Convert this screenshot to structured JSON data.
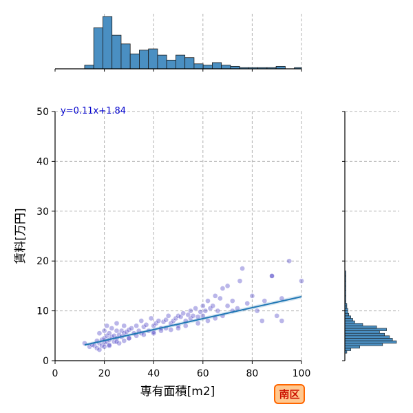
{
  "chart_data": {
    "type": "scatter",
    "title": "",
    "xlabel": "専有面積[m2]",
    "ylabel": "賃料[万円]",
    "xlim": [
      0,
      100
    ],
    "ylim": [
      0,
      50
    ],
    "xticks": [
      0,
      20,
      40,
      60,
      80,
      100
    ],
    "yticks": [
      0,
      10,
      20,
      30,
      40,
      50
    ],
    "grid": true,
    "annotation": "y=0.11x+1.84",
    "badge": "南区",
    "regression": {
      "slope": 0.11,
      "intercept": 1.84,
      "x_range": [
        12,
        100
      ]
    },
    "scatter_color": "#3a2fc0",
    "line_color": "#1f77b4",
    "hist_color": "#4a8fc2",
    "badge_fill": "#ffc890",
    "badge_stroke": "#ff6600",
    "series": [
      {
        "x": [
          12,
          14,
          15,
          16,
          17,
          17,
          18,
          18,
          19,
          19,
          20,
          20,
          20,
          21,
          21,
          21,
          22,
          22,
          22,
          23,
          23,
          24,
          24,
          25,
          25,
          25,
          26,
          26,
          27,
          27,
          28,
          28,
          29,
          30,
          30,
          31,
          32,
          33,
          34,
          35,
          35,
          36,
          37,
          38,
          39,
          40,
          40,
          41,
          42,
          43,
          44,
          45,
          45,
          46,
          47,
          48,
          49,
          50,
          50,
          51,
          52,
          53,
          54,
          55,
          55,
          56,
          57,
          58,
          59,
          60,
          60,
          61,
          62,
          63,
          64,
          65,
          66,
          67,
          68,
          70,
          70,
          72,
          74,
          75,
          78,
          80,
          82,
          85,
          88,
          90,
          92,
          95,
          100,
          18,
          20,
          22,
          25,
          28,
          30,
          33,
          36,
          40,
          43,
          47,
          50,
          53,
          58,
          62,
          65,
          68,
          72,
          76,
          84,
          88,
          92
        ],
        "y": [
          3.5,
          2.8,
          3.2,
          3.0,
          4.0,
          2.5,
          3.5,
          5.5,
          4.2,
          3.0,
          6.0,
          4.5,
          3.5,
          5.0,
          3.8,
          7.0,
          4.2,
          5.5,
          3.2,
          6.5,
          4.8,
          5.0,
          3.8,
          6.0,
          4.5,
          7.5,
          5.2,
          3.5,
          6.0,
          4.8,
          5.5,
          7.0,
          5.8,
          6.2,
          4.5,
          6.5,
          5.5,
          7.0,
          6.0,
          8.0,
          5.5,
          6.8,
          7.2,
          6.0,
          8.5,
          7.0,
          5.8,
          7.5,
          8.0,
          6.5,
          7.8,
          8.2,
          6.5,
          9.0,
          7.5,
          8.0,
          8.5,
          9.0,
          7.0,
          8.8,
          9.5,
          8.0,
          9.2,
          10.0,
          8.5,
          9.0,
          10.5,
          8.8,
          9.8,
          11.0,
          9.0,
          10.0,
          12.0,
          10.5,
          11.0,
          13.0,
          10.0,
          12.5,
          14.5,
          11.0,
          15.0,
          12.0,
          10.5,
          16.0,
          11.5,
          13.0,
          10.0,
          12.0,
          17.0,
          9.0,
          12.5,
          20.0,
          16.0,
          2.2,
          2.8,
          3.0,
          3.8,
          4.0,
          4.5,
          5.0,
          5.2,
          5.5,
          6.0,
          6.2,
          6.5,
          7.0,
          7.5,
          8.0,
          8.5,
          9.0,
          10.0,
          18.5,
          8.0,
          17.0,
          8.0
        ]
      }
    ],
    "hist_x": {
      "bin_edges": [
        12,
        15.7,
        19.4,
        23.1,
        26.8,
        30.5,
        34.2,
        37.9,
        41.6,
        45.3,
        49,
        52.7,
        56.4,
        60.1,
        63.8,
        67.5,
        71.2,
        74.9,
        78.6,
        82.3,
        86,
        89.7,
        93.4,
        97.1,
        100
      ],
      "counts": [
        3,
        33,
        42,
        27,
        20,
        12,
        15,
        16,
        11,
        7,
        11,
        9,
        4,
        3,
        5,
        3,
        2,
        1,
        1,
        1,
        1,
        2,
        0,
        1
      ]
    },
    "hist_y": {
      "bin_edges": [
        1.5,
        2.0,
        2.5,
        3.0,
        3.5,
        4.0,
        4.5,
        5.0,
        5.5,
        6.0,
        6.5,
        7.0,
        7.5,
        8.0,
        8.5,
        9.0,
        9.5,
        10.0,
        10.5,
        11.0,
        11.5,
        12.0,
        13.0,
        14.0,
        15.0,
        16.0,
        17.0,
        18.0
      ],
      "counts": [
        2,
        6,
        15,
        38,
        52,
        48,
        45,
        40,
        35,
        42,
        32,
        18,
        10,
        8,
        6,
        4,
        3,
        3,
        2,
        2,
        1,
        1,
        1,
        1,
        1,
        1,
        1
      ]
    }
  }
}
